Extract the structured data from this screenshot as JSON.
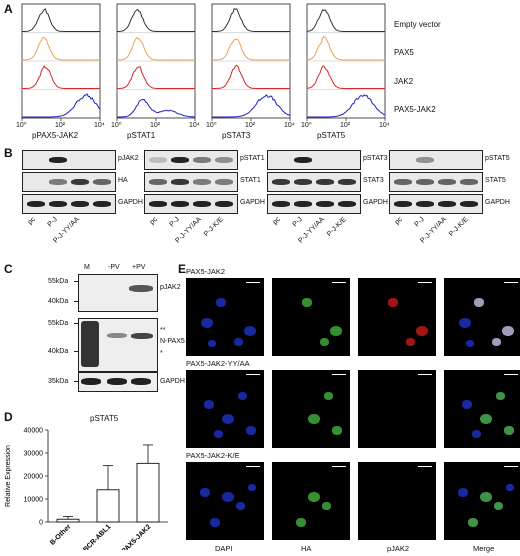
{
  "panel_A": {
    "label": "A",
    "legend": [
      "Empty vector",
      "PAX5",
      "JAK2",
      "PAX5-JAK2"
    ],
    "colors": [
      "#333333",
      "#f0a050",
      "#d62728",
      "#2020c0"
    ],
    "xlabels": [
      "pPAX5-JAK2",
      "pSTAT1",
      "pSTAT3",
      "pSTAT5"
    ],
    "ticks": [
      "10⁰",
      "10²",
      "10⁴"
    ]
  },
  "panel_B": {
    "label": "B",
    "lanes_3": [
      "pc",
      "P-J",
      "P-J-YY/AA"
    ],
    "lanes_4": [
      "pc",
      "P-J",
      "P-J-YY/AA",
      "P-J-K/E"
    ],
    "groups": [
      {
        "rows": [
          "pJAK2",
          "HA",
          "GAPDH"
        ]
      },
      {
        "rows": [
          "pSTAT1",
          "STAT1",
          "GAPDH"
        ]
      },
      {
        "rows": [
          "pSTAT3",
          "STAT3",
          "GAPDH"
        ]
      },
      {
        "rows": [
          "pSTAT5",
          "STAT5",
          "GAPDH"
        ]
      }
    ]
  },
  "panel_C": {
    "label": "C",
    "lanes": [
      "M",
      "-PV",
      "+PV"
    ],
    "markers": [
      "55kDa",
      "40kDa",
      "55kDa",
      "40kDa",
      "35kDa"
    ],
    "rows": [
      "pJAK2",
      "**",
      "N-PAX5",
      "*",
      "GAPDH"
    ]
  },
  "panel_D": {
    "label": "D",
    "title": "pSTAT5",
    "ylabel": "Relative Expression",
    "yticks": [
      "0",
      "10000",
      "20000",
      "30000",
      "40000"
    ]
  },
  "panel_E": {
    "label": "E",
    "rows": [
      "PAX5-JAK2",
      "PAX5-JAK2-YY/AA",
      "PAX5-JAK2-K/E"
    ],
    "columns": [
      "DAPI",
      "HA",
      "pJAK2",
      "Merge"
    ]
  },
  "chart_data": {
    "type": "bar",
    "title": "pSTAT5",
    "categories": [
      "B-Other",
      "BCR-ABL1",
      "PAX5-JAK2"
    ],
    "values": [
      1200,
      14000,
      25500
    ],
    "error": [
      1200,
      10500,
      8000
    ],
    "xlabel": "",
    "ylabel": "Relative Expression",
    "ylim": [
      0,
      40000
    ],
    "grid": false
  }
}
